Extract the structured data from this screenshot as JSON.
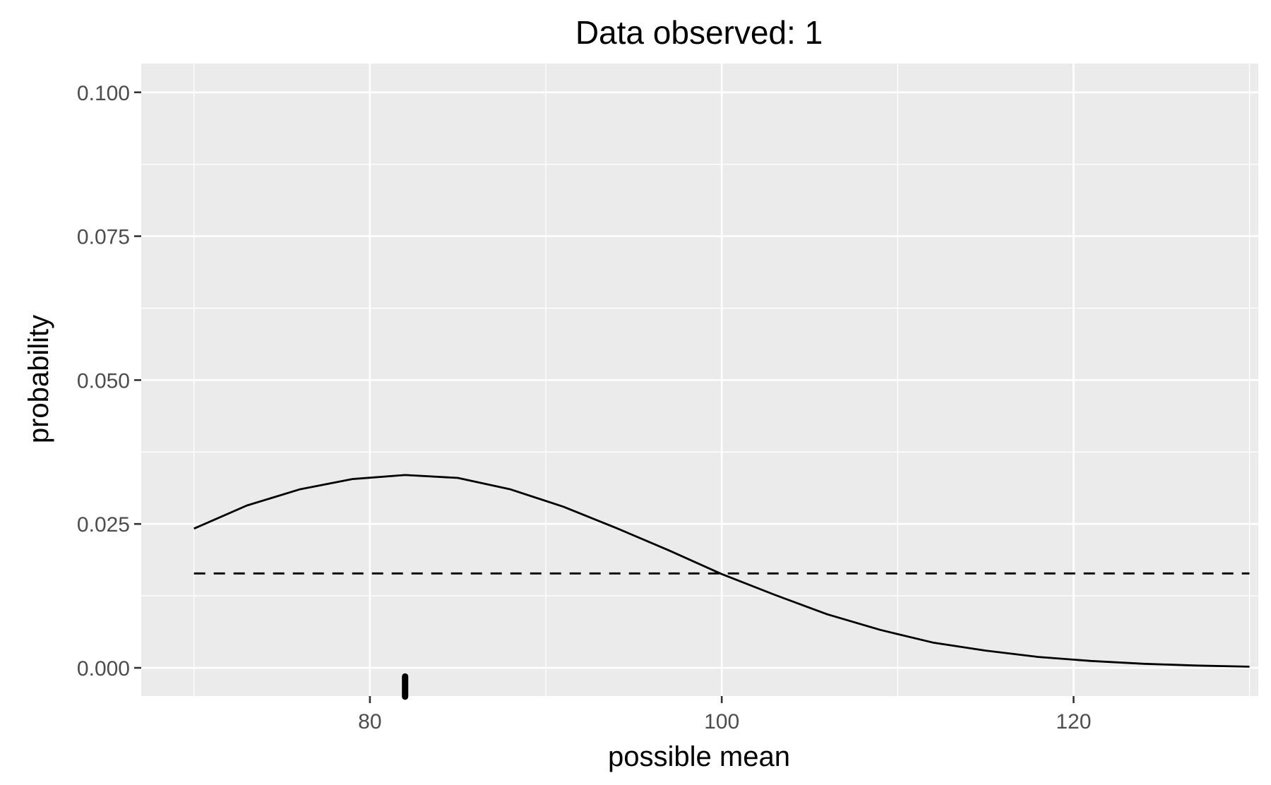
{
  "chart_data": {
    "type": "line",
    "title": "Data observed: 1",
    "xlabel": "possible mean",
    "ylabel": "probability",
    "xlim": [
      67,
      130.5
    ],
    "ylim": [
      -0.0049,
      0.105
    ],
    "x_ticks": [
      80,
      100,
      120
    ],
    "x_tick_labels": [
      "80",
      "100",
      "120"
    ],
    "x_minor_ticks": [
      70,
      90,
      110,
      130
    ],
    "y_ticks": [
      0.0,
      0.025,
      0.05,
      0.075,
      0.1
    ],
    "y_tick_labels": [
      "0.000",
      "0.025",
      "0.050",
      "0.075",
      "0.100"
    ],
    "y_minor_ticks": [
      0.0125,
      0.0375,
      0.0625,
      0.0875
    ],
    "grid": true,
    "colors": {
      "panel": "#ebebeb",
      "grid": "#ffffff",
      "line": "#000000",
      "ticks": "#333333"
    },
    "series": [
      {
        "style": "solid",
        "x": [
          70,
          73,
          76,
          79,
          82,
          85,
          88,
          91,
          94,
          97,
          100,
          103,
          106,
          109,
          112,
          115,
          118,
          121,
          124,
          127,
          130
        ],
        "y": [
          0.0242,
          0.0282,
          0.031,
          0.0328,
          0.0335,
          0.033,
          0.031,
          0.028,
          0.0243,
          0.0204,
          0.0163,
          0.0127,
          0.0093,
          0.0066,
          0.0044,
          0.003,
          0.0019,
          0.0012,
          0.0007,
          0.0004,
          0.0002
        ]
      },
      {
        "style": "dashed",
        "x": [
          70,
          130
        ],
        "y": [
          0.0164,
          0.0164
        ]
      }
    ],
    "rug": {
      "x": 82,
      "y_range": [
        -0.005,
        -0.0015
      ]
    }
  }
}
